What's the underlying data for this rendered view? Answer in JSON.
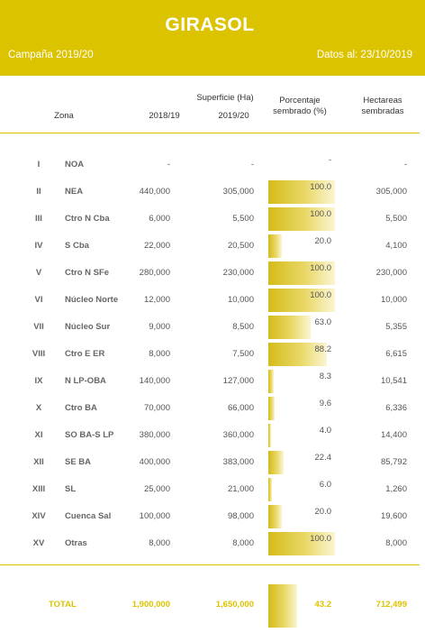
{
  "header": {
    "title": "GIRASOL",
    "campaign": "Campaña 2019/20",
    "date": "Datos al: 23/10/2019"
  },
  "columns": {
    "zona": "Zona",
    "superficie": "Superficie (Ha)",
    "year_prev": "2018/19",
    "year_curr": "2019/20",
    "porcentaje_1": "Porcentaje",
    "porcentaje_2": "sembrado (%)",
    "hectareas_1": "Hectareas",
    "hectareas_2": "sembradas"
  },
  "rows": [
    {
      "num": "I",
      "zona": "NOA",
      "s2018": "-",
      "s2019": "-",
      "pct": "-",
      "pct_value": 0,
      "hect": "-"
    },
    {
      "num": "II",
      "zona": "NEA",
      "s2018": "440,000",
      "s2019": "305,000",
      "pct": "100.0",
      "pct_value": 100,
      "hect": "305,000"
    },
    {
      "num": "III",
      "zona": "Ctro N Cba",
      "s2018": "6,000",
      "s2019": "5,500",
      "pct": "100.0",
      "pct_value": 100,
      "hect": "5,500"
    },
    {
      "num": "IV",
      "zona": "S Cba",
      "s2018": "22,000",
      "s2019": "20,500",
      "pct": "20.0",
      "pct_value": 20,
      "hect": "4,100"
    },
    {
      "num": "V",
      "zona": "Ctro N SFe",
      "s2018": "280,000",
      "s2019": "230,000",
      "pct": "100.0",
      "pct_value": 100,
      "hect": "230,000"
    },
    {
      "num": "VI",
      "zona": "Núcleo Norte",
      "s2018": "12,000",
      "s2019": "10,000",
      "pct": "100.0",
      "pct_value": 100,
      "hect": "10,000"
    },
    {
      "num": "VII",
      "zona": "Núcleo Sur",
      "s2018": "9,000",
      "s2019": "8,500",
      "pct": "63.0",
      "pct_value": 63,
      "hect": "5,355"
    },
    {
      "num": "VIII",
      "zona": "Ctro E ER",
      "s2018": "8,000",
      "s2019": "7,500",
      "pct": "88.2",
      "pct_value": 88.2,
      "hect": "6,615"
    },
    {
      "num": "IX",
      "zona": "N LP-OBA",
      "s2018": "140,000",
      "s2019": "127,000",
      "pct": "8.3",
      "pct_value": 8.3,
      "hect": "10,541"
    },
    {
      "num": "X",
      "zona": "Ctro BA",
      "s2018": "70,000",
      "s2019": "66,000",
      "pct": "9.6",
      "pct_value": 9.6,
      "hect": "6,336"
    },
    {
      "num": "XI",
      "zona": "SO BA-S LP",
      "s2018": "380,000",
      "s2019": "360,000",
      "pct": "4.0",
      "pct_value": 4,
      "hect": "14,400"
    },
    {
      "num": "XII",
      "zona": "SE BA",
      "s2018": "400,000",
      "s2019": "383,000",
      "pct": "22.4",
      "pct_value": 22.4,
      "hect": "85,792"
    },
    {
      "num": "XIII",
      "zona": "SL",
      "s2018": "25,000",
      "s2019": "21,000",
      "pct": "6.0",
      "pct_value": 6,
      "hect": "1,260"
    },
    {
      "num": "XIV",
      "zona": "Cuenca Sal",
      "s2018": "100,000",
      "s2019": "98,000",
      "pct": "20.0",
      "pct_value": 20,
      "hect": "19,600"
    },
    {
      "num": "XV",
      "zona": "Otras",
      "s2018": "8,000",
      "s2019": "8,000",
      "pct": "100.0",
      "pct_value": 100,
      "hect": "8,000"
    }
  ],
  "total": {
    "label": "TOTAL",
    "s2018": "1,900,000",
    "s2019": "1,650,000",
    "pct": "43.2",
    "pct_value": 43.2,
    "hect": "712,499"
  },
  "colors": {
    "accent": "#dcc300",
    "bar_start": "#d4bb1a",
    "bar_end": "#fbf5d3"
  }
}
